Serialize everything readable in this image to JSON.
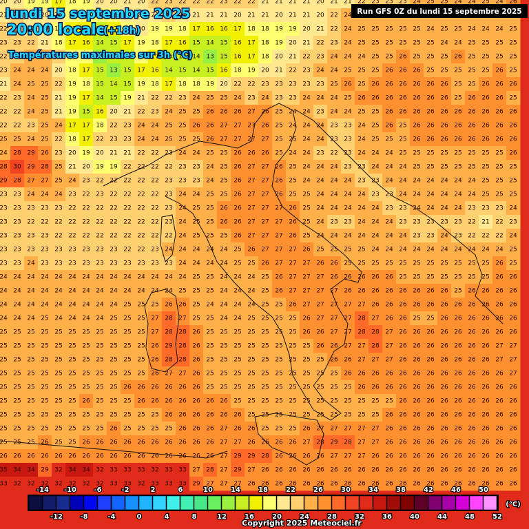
{
  "header": {
    "date": "lundi 15 septembre 2025",
    "time": "20:00 locale",
    "lead": "(+18h)",
    "variable": "Températures maximales sur 3h (°C)",
    "run": "Run GFS 0Z du lundi 15 septembre 2025",
    "copyright": "Copyright 2025 Meteociel.fr"
  },
  "colorbar": {
    "unit": "(°C)",
    "top_labels": [
      -14,
      -10,
      -6,
      -2,
      2,
      6,
      10,
      14,
      18,
      22,
      26,
      30,
      34,
      38,
      42,
      46,
      50
    ],
    "bottom_labels": [
      -12,
      -8,
      -4,
      0,
      4,
      8,
      12,
      16,
      20,
      24,
      28,
      32,
      36,
      40,
      44,
      48,
      52
    ],
    "colors": [
      "#0a0f40",
      "#101c68",
      "#182c90",
      "#0000b8",
      "#0008f0",
      "#2040ff",
      "#1464ff",
      "#1890ff",
      "#20b4ff",
      "#30d4ff",
      "#40f0e8",
      "#40f0b0",
      "#48e888",
      "#68f060",
      "#98f040",
      "#c8f020",
      "#f0f000",
      "#ffff70",
      "#ffe890",
      "#ffd070",
      "#ffb048",
      "#ff9030",
      "#ff6a28",
      "#f04422",
      "#e02a1a",
      "#c81810",
      "#a00c08",
      "#800000",
      "#600028",
      "#800070",
      "#a800a8",
      "#d800d8",
      "#ff44ff",
      "#ff90ff"
    ]
  },
  "grid": {
    "rows": [
      [
        20,
        20,
        19,
        19,
        17,
        18,
        19,
        20,
        20,
        21,
        20,
        22,
        23,
        22,
        22,
        22,
        23,
        22,
        22,
        21,
        21,
        21,
        21,
        20,
        21,
        21,
        22,
        23,
        23,
        23,
        24,
        25,
        25,
        24,
        24,
        25,
        24,
        26
      ],
      [
        21,
        22,
        21,
        20,
        20,
        19,
        18,
        18,
        19,
        20,
        21,
        21,
        22,
        21,
        21,
        21,
        21,
        20,
        21,
        21,
        20,
        21,
        21,
        20,
        22,
        24,
        25,
        25,
        24,
        25,
        25,
        25,
        25,
        25,
        25,
        24,
        25,
        25
      ],
      [
        22,
        22,
        21,
        20,
        19,
        17,
        16,
        15,
        17,
        18,
        20,
        19,
        19,
        18,
        17,
        16,
        16,
        17,
        18,
        18,
        19,
        19,
        20,
        21,
        22,
        24,
        25,
        25,
        25,
        25,
        25,
        24,
        25,
        25,
        24,
        24,
        24,
        25
      ],
      [
        23,
        23,
        22,
        21,
        18,
        17,
        16,
        14,
        15,
        17,
        19,
        18,
        17,
        16,
        15,
        14,
        15,
        16,
        17,
        18,
        19,
        20,
        21,
        22,
        23,
        24,
        25,
        25,
        25,
        25,
        25,
        25,
        24,
        24,
        25,
        25,
        25,
        25
      ],
      [
        22,
        22,
        24,
        24,
        22,
        19,
        19,
        13,
        14,
        15,
        18,
        17,
        15,
        14,
        14,
        13,
        15,
        16,
        17,
        18,
        20,
        21,
        22,
        23,
        24,
        24,
        24,
        25,
        25,
        26,
        25,
        25,
        25,
        26,
        25,
        25,
        25,
        25
      ],
      [
        23,
        24,
        24,
        24,
        20,
        18,
        17,
        15,
        13,
        15,
        17,
        16,
        14,
        15,
        14,
        15,
        16,
        18,
        19,
        20,
        21,
        22,
        23,
        24,
        24,
        25,
        25,
        25,
        26,
        26,
        26,
        25,
        25,
        25,
        25,
        25,
        26,
        25
      ],
      [
        21,
        24,
        25,
        25,
        22,
        19,
        18,
        15,
        14,
        15,
        19,
        18,
        17,
        18,
        18,
        19,
        20,
        22,
        22,
        23,
        23,
        23,
        23,
        23,
        25,
        26,
        25,
        26,
        26,
        26,
        26,
        26,
        26,
        25,
        25,
        26,
        26,
        26
      ],
      [
        22,
        23,
        24,
        25,
        21,
        19,
        17,
        14,
        15,
        19,
        21,
        22,
        22,
        23,
        24,
        25,
        25,
        24,
        23,
        24,
        23,
        23,
        24,
        24,
        24,
        25,
        26,
        26,
        26,
        26,
        26,
        26,
        26,
        25,
        26,
        26,
        26,
        25
      ],
      [
        22,
        22,
        24,
        25,
        21,
        19,
        15,
        16,
        20,
        21,
        22,
        23,
        24,
        25,
        25,
        26,
        26,
        26,
        27,
        26,
        25,
        24,
        24,
        23,
        24,
        24,
        25,
        25,
        26,
        26,
        26,
        26,
        26,
        26,
        26,
        26,
        26,
        26
      ],
      [
        22,
        22,
        23,
        25,
        24,
        17,
        17,
        18,
        22,
        23,
        24,
        24,
        25,
        25,
        26,
        26,
        27,
        27,
        27,
        26,
        25,
        24,
        24,
        24,
        23,
        23,
        24,
        25,
        26,
        25,
        26,
        26,
        26,
        26,
        26,
        26,
        26,
        26
      ],
      [
        25,
        25,
        24,
        25,
        22,
        18,
        17,
        22,
        23,
        23,
        24,
        24,
        25,
        25,
        25,
        26,
        27,
        27,
        27,
        27,
        25,
        25,
        24,
        24,
        23,
        23,
        24,
        25,
        25,
        25,
        26,
        26,
        26,
        26,
        26,
        26,
        26,
        26
      ],
      [
        24,
        28,
        29,
        26,
        23,
        20,
        19,
        20,
        21,
        21,
        22,
        22,
        23,
        24,
        24,
        25,
        25,
        26,
        26,
        26,
        25,
        24,
        24,
        23,
        22,
        23,
        24,
        24,
        24,
        25,
        25,
        25,
        25,
        25,
        25,
        25,
        25,
        26
      ],
      [
        28,
        30,
        29,
        28,
        25,
        21,
        20,
        19,
        19,
        22,
        22,
        22,
        22,
        23,
        23,
        24,
        25,
        26,
        27,
        27,
        26,
        25,
        24,
        24,
        24,
        23,
        23,
        24,
        24,
        24,
        25,
        25,
        25,
        25,
        25,
        25,
        25,
        25
      ],
      [
        29,
        28,
        27,
        27,
        25,
        24,
        23,
        22,
        22,
        22,
        22,
        22,
        23,
        23,
        23,
        24,
        25,
        26,
        27,
        27,
        26,
        25,
        24,
        24,
        24,
        24,
        23,
        23,
        24,
        24,
        24,
        24,
        24,
        24,
        24,
        25,
        25,
        25
      ],
      [
        23,
        23,
        24,
        24,
        24,
        23,
        22,
        23,
        22,
        22,
        22,
        22,
        23,
        24,
        24,
        25,
        25,
        26,
        27,
        27,
        26,
        25,
        25,
        24,
        24,
        24,
        24,
        23,
        23,
        24,
        24,
        24,
        24,
        24,
        24,
        25,
        25,
        25
      ],
      [
        23,
        23,
        23,
        23,
        23,
        22,
        22,
        22,
        22,
        22,
        22,
        22,
        23,
        24,
        25,
        25,
        26,
        26,
        27,
        27,
        27,
        26,
        25,
        24,
        24,
        24,
        24,
        24,
        23,
        23,
        24,
        24,
        24,
        24,
        23,
        23,
        23,
        24
      ],
      [
        23,
        23,
        22,
        22,
        22,
        22,
        22,
        22,
        22,
        22,
        22,
        22,
        23,
        24,
        25,
        25,
        26,
        26,
        27,
        27,
        27,
        26,
        25,
        24,
        23,
        23,
        24,
        24,
        24,
        23,
        23,
        23,
        23,
        23,
        22,
        21,
        22,
        23
      ],
      [
        23,
        23,
        23,
        23,
        22,
        22,
        22,
        22,
        22,
        22,
        22,
        22,
        22,
        24,
        25,
        25,
        25,
        26,
        27,
        27,
        27,
        26,
        25,
        24,
        24,
        24,
        24,
        24,
        24,
        24,
        23,
        23,
        24,
        23,
        22,
        22,
        22,
        24
      ],
      [
        23,
        23,
        23,
        23,
        23,
        23,
        23,
        23,
        23,
        22,
        22,
        23,
        24,
        24,
        24,
        24,
        24,
        25,
        26,
        27,
        27,
        27,
        26,
        25,
        25,
        25,
        25,
        24,
        24,
        24,
        24,
        24,
        24,
        24,
        24,
        24,
        24,
        25
      ],
      [
        23,
        23,
        24,
        23,
        23,
        23,
        23,
        23,
        23,
        23,
        23,
        23,
        23,
        24,
        24,
        24,
        24,
        25,
        25,
        26,
        27,
        27,
        27,
        26,
        26,
        25,
        25,
        25,
        25,
        25,
        25,
        25,
        25,
        25,
        25,
        25,
        26,
        25
      ],
      [
        24,
        24,
        24,
        24,
        24,
        24,
        24,
        24,
        24,
        24,
        24,
        24,
        24,
        24,
        25,
        25,
        24,
        24,
        24,
        25,
        26,
        27,
        27,
        27,
        26,
        26,
        26,
        26,
        26,
        25,
        25,
        25,
        25,
        25,
        25,
        25,
        26,
        26
      ],
      [
        24,
        24,
        24,
        24,
        24,
        24,
        24,
        24,
        24,
        24,
        24,
        24,
        24,
        25,
        25,
        25,
        24,
        24,
        24,
        25,
        26,
        27,
        27,
        27,
        27,
        26,
        26,
        26,
        26,
        26,
        26,
        26,
        26,
        25,
        26,
        26,
        26,
        26
      ],
      [
        24,
        24,
        24,
        24,
        24,
        24,
        24,
        24,
        24,
        25,
        25,
        25,
        26,
        26,
        25,
        24,
        24,
        24,
        24,
        25,
        25,
        26,
        27,
        27,
        27,
        27,
        27,
        26,
        26,
        26,
        26,
        26,
        26,
        26,
        26,
        26,
        26,
        26
      ],
      [
        24,
        24,
        24,
        25,
        24,
        24,
        24,
        24,
        25,
        25,
        25,
        27,
        28,
        27,
        25,
        25,
        24,
        24,
        25,
        25,
        25,
        25,
        26,
        27,
        27,
        27,
        28,
        27,
        26,
        26,
        25,
        25,
        26,
        26,
        26,
        26,
        26,
        26
      ],
      [
        25,
        25,
        25,
        25,
        25,
        25,
        25,
        25,
        25,
        25,
        25,
        27,
        28,
        28,
        26,
        25,
        25,
        25,
        25,
        25,
        25,
        25,
        26,
        26,
        27,
        27,
        28,
        28,
        27,
        26,
        26,
        26,
        26,
        26,
        26,
        26,
        26,
        26
      ],
      [
        25,
        25,
        25,
        25,
        25,
        25,
        25,
        25,
        25,
        25,
        25,
        26,
        29,
        28,
        26,
        25,
        25,
        25,
        25,
        25,
        25,
        25,
        25,
        26,
        26,
        27,
        27,
        28,
        27,
        26,
        26,
        26,
        26,
        26,
        26,
        26,
        27,
        27
      ],
      [
        25,
        25,
        25,
        25,
        25,
        25,
        25,
        25,
        25,
        25,
        25,
        26,
        28,
        28,
        26,
        25,
        25,
        25,
        25,
        25,
        25,
        25,
        25,
        25,
        26,
        26,
        27,
        27,
        27,
        26,
        26,
        26,
        26,
        26,
        26,
        26,
        27,
        27
      ],
      [
        25,
        25,
        25,
        25,
        25,
        25,
        25,
        25,
        25,
        25,
        25,
        26,
        27,
        27,
        26,
        25,
        25,
        25,
        25,
        25,
        25,
        25,
        25,
        25,
        25,
        26,
        26,
        26,
        26,
        26,
        26,
        26,
        26,
        26,
        26,
        26,
        26,
        27
      ],
      [
        25,
        25,
        25,
        25,
        25,
        25,
        25,
        25,
        25,
        26,
        26,
        26,
        26,
        26,
        26,
        25,
        25,
        25,
        25,
        25,
        25,
        25,
        25,
        25,
        25,
        25,
        26,
        26,
        26,
        26,
        26,
        26,
        26,
        26,
        26,
        26,
        26,
        26
      ],
      [
        25,
        25,
        25,
        25,
        25,
        25,
        26,
        25,
        25,
        25,
        26,
        26,
        26,
        26,
        26,
        26,
        26,
        25,
        25,
        25,
        25,
        25,
        25,
        25,
        25,
        25,
        25,
        25,
        25,
        26,
        26,
        26,
        26,
        26,
        26,
        26,
        26,
        26
      ],
      [
        25,
        25,
        25,
        25,
        25,
        25,
        25,
        25,
        25,
        25,
        25,
        25,
        26,
        26,
        26,
        26,
        26,
        26,
        25,
        25,
        25,
        25,
        25,
        25,
        25,
        25,
        25,
        25,
        26,
        26,
        26,
        26,
        26,
        26,
        26,
        26,
        26,
        26
      ],
      [
        25,
        25,
        25,
        25,
        25,
        25,
        25,
        25,
        26,
        25,
        25,
        25,
        25,
        26,
        26,
        26,
        27,
        26,
        26,
        25,
        25,
        25,
        26,
        27,
        27,
        27,
        27,
        27,
        26,
        26,
        26,
        26,
        26,
        26,
        26,
        26,
        26,
        26
      ],
      [
        25,
        25,
        25,
        26,
        25,
        25,
        26,
        26,
        26,
        26,
        26,
        26,
        26,
        26,
        26,
        26,
        27,
        27,
        26,
        26,
        26,
        26,
        27,
        28,
        29,
        28,
        27,
        27,
        26,
        26,
        26,
        26,
        26,
        26,
        26,
        26,
        26,
        26
      ],
      [
        26,
        26,
        26,
        26,
        26,
        26,
        26,
        26,
        26,
        26,
        26,
        26,
        26,
        26,
        26,
        26,
        27,
        29,
        29,
        28,
        26,
        26,
        26,
        26,
        27,
        27,
        27,
        26,
        26,
        26,
        26,
        26,
        26,
        26,
        26,
        26,
        26,
        26
      ],
      [
        35,
        34,
        34,
        29,
        32,
        34,
        34,
        32,
        33,
        33,
        33,
        32,
        33,
        33,
        27,
        28,
        27,
        29,
        27,
        26,
        26,
        26,
        26,
        26,
        26,
        26,
        26,
        26,
        26,
        26,
        26,
        26,
        26,
        26,
        26,
        26,
        26,
        26
      ],
      [
        33,
        32,
        32,
        32,
        32,
        32,
        32,
        32,
        33,
        33,
        32,
        33,
        33,
        33,
        29,
        27,
        27,
        27,
        26,
        26,
        26,
        26,
        26,
        26,
        26,
        26,
        26,
        26,
        26,
        26,
        26,
        26,
        26,
        26,
        26,
        26,
        26,
        26
      ]
    ]
  }
}
